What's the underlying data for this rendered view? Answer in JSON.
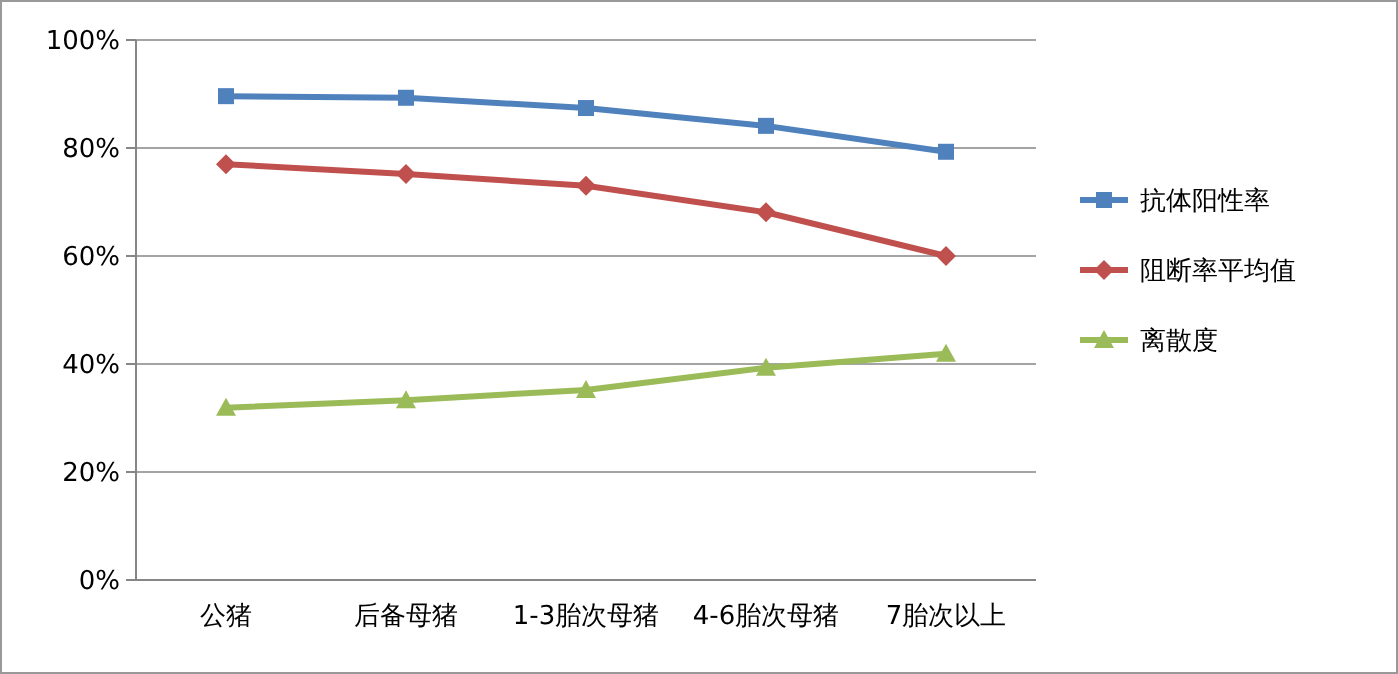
{
  "chart_data": {
    "type": "line",
    "categories": [
      "公猪",
      "后备母猪",
      "1-3胎次母猪",
      "4-6胎次母猪",
      "7胎次以上"
    ],
    "series": [
      {
        "name": "抗体阳性率",
        "color": "#4f81bd",
        "marker": "square",
        "values": [
          89.6,
          89.3,
          87.4,
          84.1,
          79.3
        ]
      },
      {
        "name": "阻断率平均值",
        "color": "#c0504d",
        "marker": "diamond",
        "values": [
          77.0,
          75.2,
          73.0,
          68.1,
          60.0
        ]
      },
      {
        "name": "离散度",
        "color": "#9bbb59",
        "marker": "triangle",
        "values": [
          31.9,
          33.3,
          35.2,
          39.3,
          41.9
        ]
      }
    ],
    "ylim": [
      0,
      100
    ],
    "yticks": [
      {
        "value": 0,
        "label": "0%"
      },
      {
        "value": 20,
        "label": "20%"
      },
      {
        "value": 40,
        "label": "40%"
      },
      {
        "value": 60,
        "label": "60%"
      },
      {
        "value": 80,
        "label": "80%"
      },
      {
        "value": 100,
        "label": "100%"
      }
    ],
    "grid": "y",
    "legend": "right"
  }
}
